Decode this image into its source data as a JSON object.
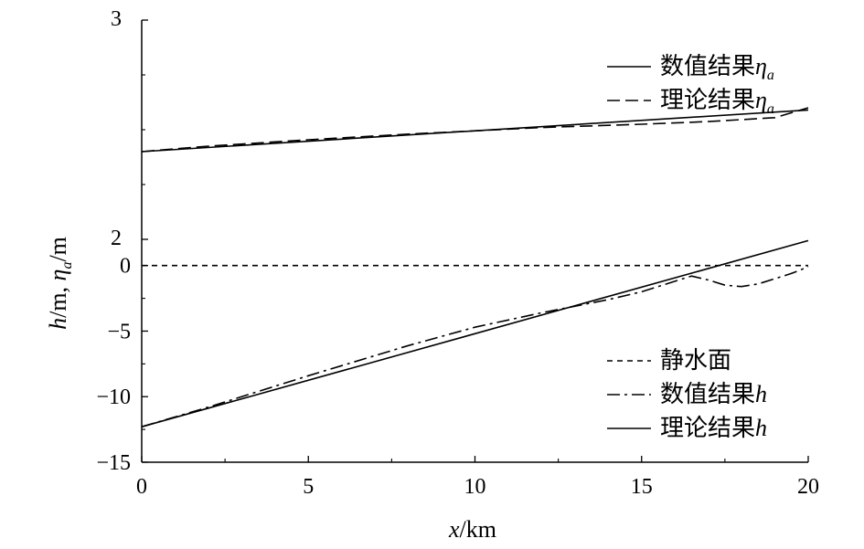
{
  "chart_data": {
    "type": "line",
    "xlabel": "x/km",
    "ylabel": "h/m, η_a/m",
    "xlim": [
      0,
      20
    ],
    "x_ticks": [
      "0",
      "5",
      "10",
      "15",
      "20"
    ],
    "lower_axis": {
      "ylim": [
        -15,
        2
      ],
      "tick_labels": [
        "−15",
        "−10",
        "−5",
        "0",
        "2"
      ]
    },
    "upper_axis": {
      "ylim": [
        2,
        3
      ],
      "tick_labels": [
        "2",
        "3"
      ]
    },
    "legend_upper": {
      "placement": "top-right",
      "items": [
        "数值结果η_a",
        "理论结果η_a"
      ]
    },
    "legend_lower": {
      "placement": "bottom-right",
      "items": [
        "静水面",
        "数值结果h",
        "理论结果h"
      ]
    },
    "series": [
      {
        "name": "数值结果η_a",
        "axis": "upper",
        "style": "solid",
        "x": [
          0,
          20
        ],
        "y": [
          2.4,
          2.59
        ]
      },
      {
        "name": "理论结果η_a",
        "axis": "upper",
        "style": "dashed",
        "x": [
          0,
          2,
          5,
          8,
          10,
          12,
          15,
          17,
          19,
          20
        ],
        "y": [
          2.4,
          2.425,
          2.454,
          2.48,
          2.495,
          2.51,
          2.525,
          2.537,
          2.555,
          2.6
        ]
      },
      {
        "name": "静水面",
        "axis": "lower",
        "style": "short-dash",
        "x": [
          0,
          20
        ],
        "y": [
          0,
          0
        ]
      },
      {
        "name": "数值结果h",
        "axis": "lower",
        "style": "dash-dot",
        "x": [
          0,
          2,
          5,
          8,
          10,
          12,
          14,
          15,
          16,
          16.5,
          17,
          17.5,
          18,
          18.5,
          19,
          19.5,
          20
        ],
        "y": [
          -12.3,
          -10.8,
          -8.4,
          -6.1,
          -4.7,
          -3.6,
          -2.6,
          -2.0,
          -1.2,
          -0.8,
          -1.1,
          -1.5,
          -1.6,
          -1.4,
          -1.0,
          -0.6,
          -0.1
        ]
      },
      {
        "name": "理论结果h",
        "axis": "lower",
        "style": "solid",
        "x": [
          0,
          20
        ],
        "y": [
          -12.3,
          1.9
        ]
      }
    ]
  }
}
